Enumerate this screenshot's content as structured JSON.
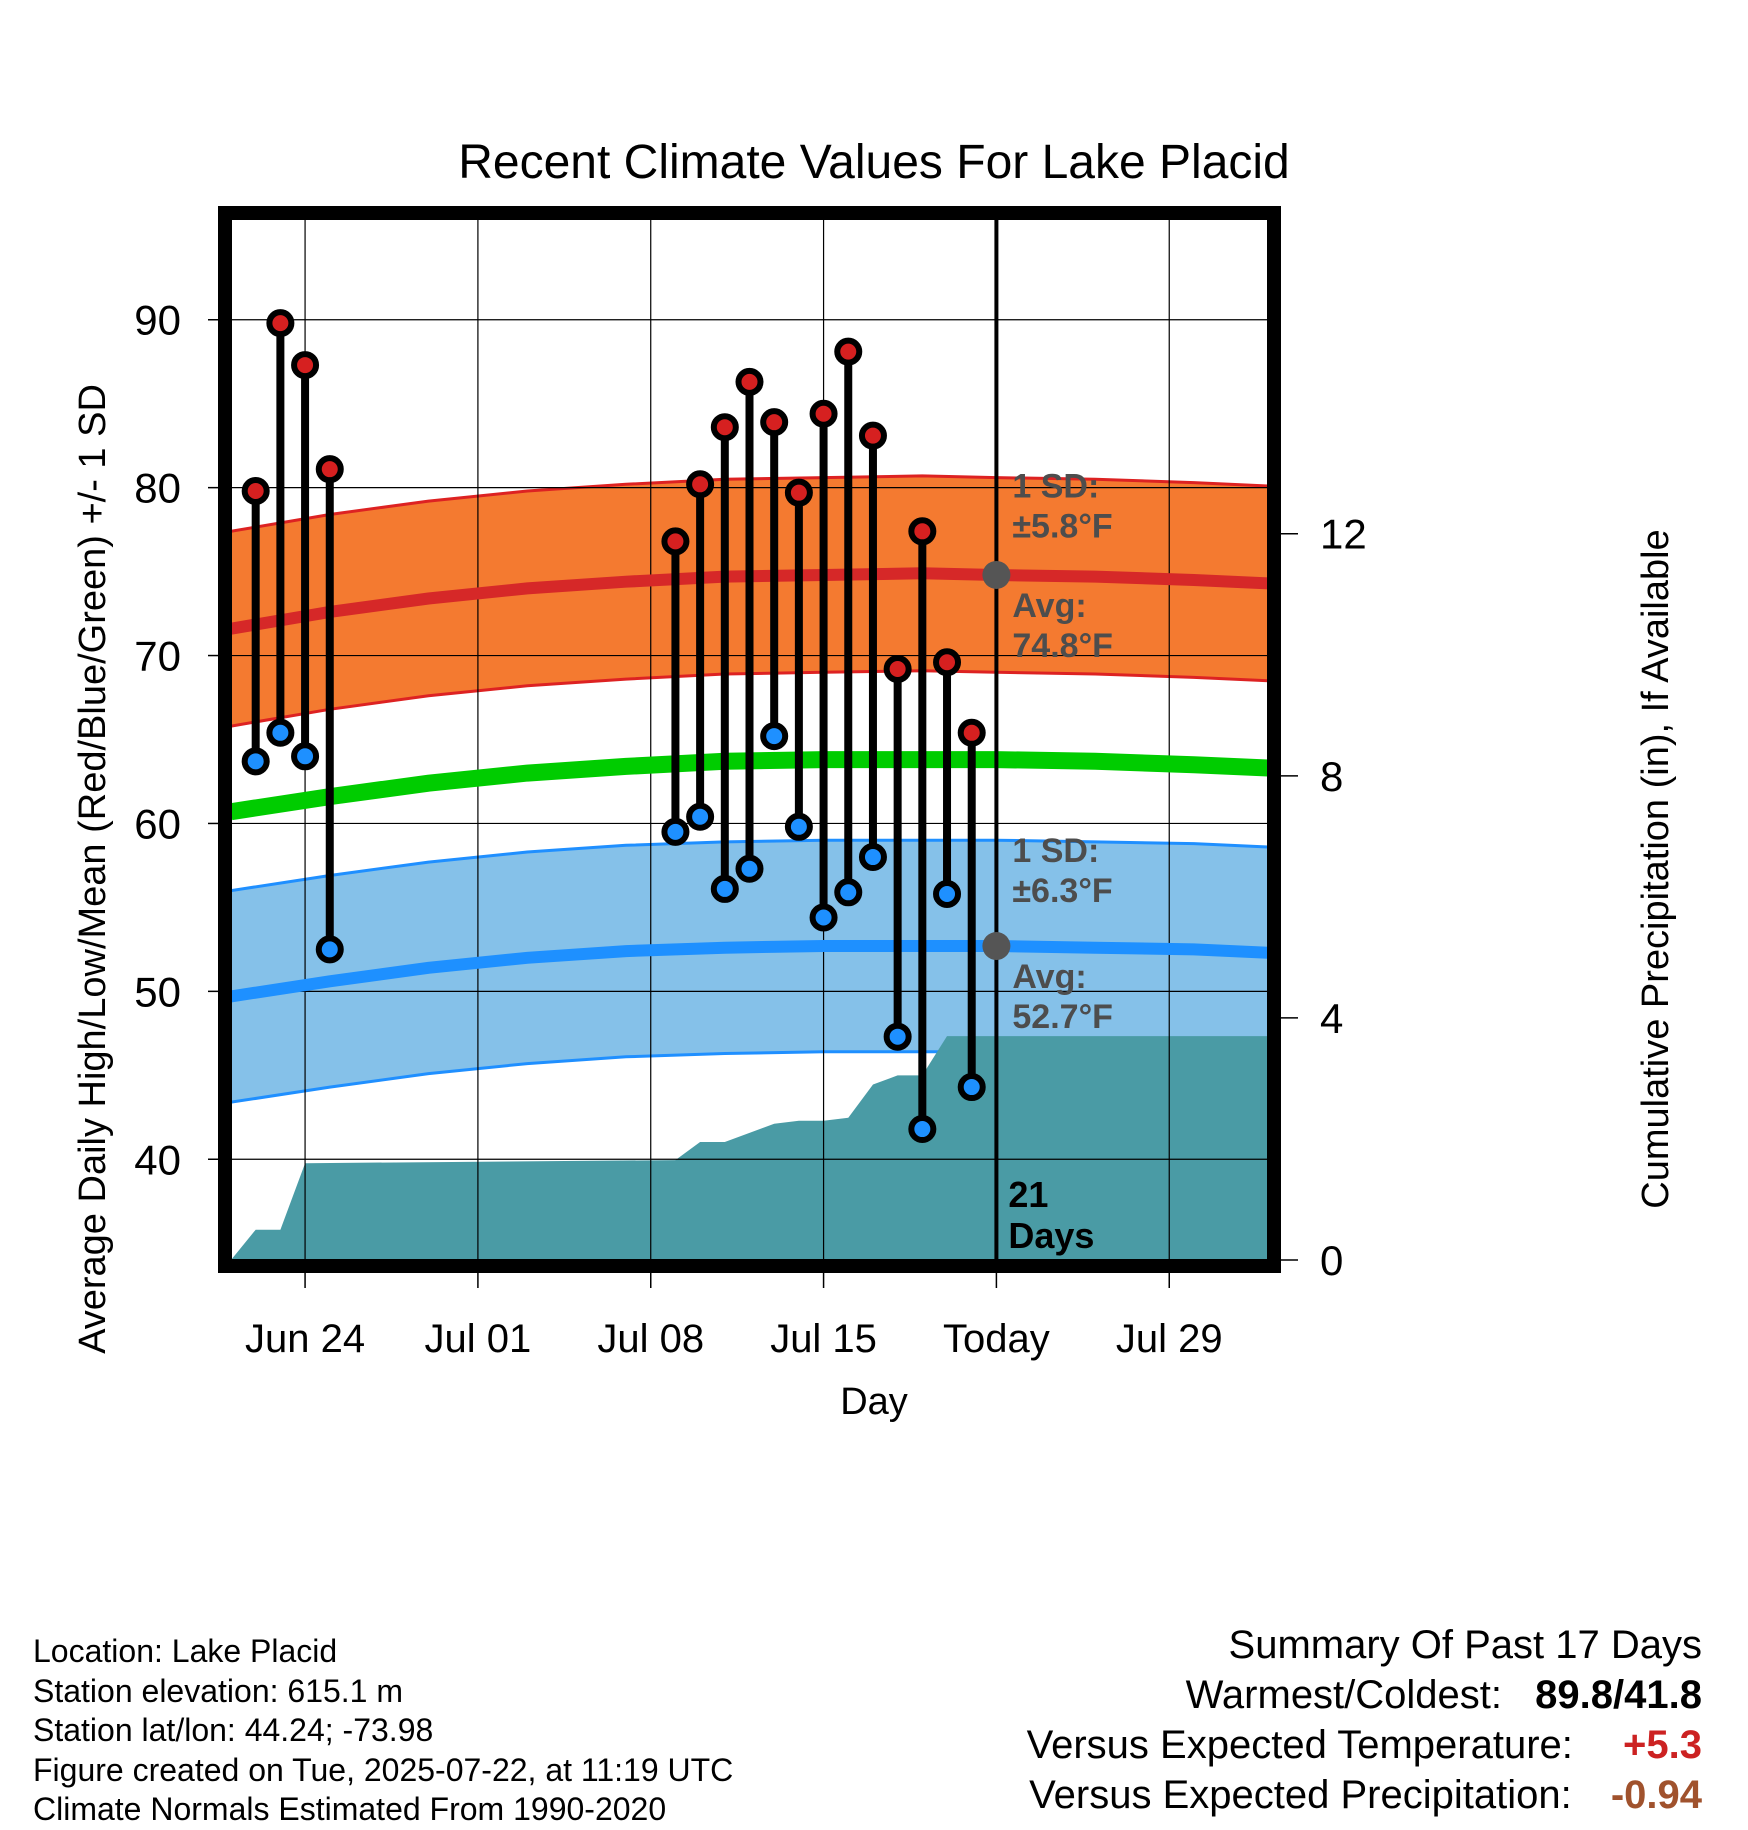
{
  "chart_data": {
    "type": "line",
    "title": "Recent Climate Values For Lake Placid",
    "xlabel": "Day",
    "ylabel": "Average Daily High/Low/Mean (Red/Blue/Green) +/- 1 SD",
    "y2label": "Cumulative Precipitation (in), If Available",
    "xlim": [
      "2025-06-21",
      "2025-08-02"
    ],
    "ylim": [
      34,
      96
    ],
    "y2lim": [
      0,
      17.2
    ],
    "grid": true,
    "today": "2025-07-22",
    "x_ticks": [
      {
        "date": "2025-06-24",
        "label": "Jun 24"
      },
      {
        "date": "2025-07-01",
        "label": "Jul 01"
      },
      {
        "date": "2025-07-08",
        "label": "Jul 08"
      },
      {
        "date": "2025-07-15",
        "label": "Jul 15"
      },
      {
        "date": "2025-07-22",
        "label": "Today"
      },
      {
        "date": "2025-07-29",
        "label": "Jul 29"
      }
    ],
    "y_ticks": [
      40,
      50,
      60,
      70,
      80,
      90
    ],
    "y2_ticks": [
      0,
      4,
      8,
      12
    ],
    "normals": {
      "x": [
        "2025-06-21",
        "2025-06-25",
        "2025-06-29",
        "2025-07-03",
        "2025-07-07",
        "2025-07-11",
        "2025-07-15",
        "2025-07-19",
        "2025-07-22",
        "2025-07-26",
        "2025-07-30",
        "2025-08-02"
      ],
      "high_mean": [
        71.6,
        72.6,
        73.4,
        74.0,
        74.4,
        74.7,
        74.8,
        74.9,
        74.8,
        74.7,
        74.5,
        74.3
      ],
      "low_mean": [
        49.7,
        50.6,
        51.4,
        52.0,
        52.4,
        52.6,
        52.7,
        52.7,
        52.7,
        52.6,
        52.5,
        52.3
      ],
      "mean": [
        60.7,
        61.6,
        62.4,
        63.0,
        63.4,
        63.7,
        63.8,
        63.8,
        63.8,
        63.7,
        63.5,
        63.3
      ],
      "high_sd": 5.8,
      "low_sd": 6.3
    },
    "observations": {
      "dates": [
        "2025-06-22",
        "2025-06-23",
        "2025-06-24",
        "2025-06-25",
        "2025-07-09",
        "2025-07-10",
        "2025-07-11",
        "2025-07-12",
        "2025-07-13",
        "2025-07-14",
        "2025-07-15",
        "2025-07-16",
        "2025-07-17",
        "2025-07-18",
        "2025-07-19",
        "2025-07-20",
        "2025-07-21"
      ],
      "high": [
        79.8,
        89.8,
        87.3,
        81.1,
        76.8,
        80.2,
        83.6,
        86.3,
        83.9,
        79.7,
        84.4,
        88.1,
        83.1,
        69.2,
        77.4,
        69.6,
        65.4
      ],
      "low": [
        63.7,
        65.4,
        64.0,
        52.5,
        59.5,
        60.4,
        56.1,
        57.3,
        65.2,
        59.8,
        54.4,
        55.9,
        58.0,
        47.3,
        41.8,
        55.8,
        44.3
      ]
    },
    "precipitation": {
      "x": [
        "2025-06-21",
        "2025-06-22",
        "2025-06-23",
        "2025-06-24",
        "2025-07-09",
        "2025-07-10",
        "2025-07-11",
        "2025-07-12",
        "2025-07-13",
        "2025-07-14",
        "2025-07-15",
        "2025-07-16",
        "2025-07-17",
        "2025-07-18",
        "2025-07-19",
        "2025-07-20",
        "2025-08-02"
      ],
      "cumulative": [
        0.0,
        0.5,
        0.5,
        1.6,
        1.65,
        1.95,
        1.95,
        2.1,
        2.25,
        2.3,
        2.3,
        2.35,
        2.9,
        3.05,
        3.05,
        3.7,
        3.7
      ]
    },
    "annotations": {
      "high_sd": [
        "1 SD:",
        "±5.8°F"
      ],
      "high_avg": [
        "Avg:",
        "74.8°F"
      ],
      "low_sd": [
        "1 SD:",
        "±6.3°F"
      ],
      "low_avg": [
        "Avg:",
        "52.7°F"
      ],
      "window": [
        "21",
        "Days"
      ]
    },
    "colors": {
      "high_band": "#f47a30",
      "high_band_edge": "#dd2222",
      "high_line": "#d62828",
      "low_band": "#85c1e9",
      "low_band_edge": "#1f8fff",
      "low_line": "#1e90ff",
      "mean_line": "#00cc00",
      "precip": "#4a9ba5",
      "high_dot": "#d62020",
      "low_dot": "#1e90ff",
      "today_dot": "#555555"
    }
  },
  "info": [
    "Location: Lake Placid",
    "Station elevation: 615.1 m",
    "Station lat/lon: 44.24; -73.98",
    "Figure created on Tue, 2025-07-22, at 11:19 UTC",
    "Climate Normals Estimated From 1990-2020"
  ],
  "summary": {
    "heading": "Summary Of Past 17 Days",
    "warmest_label": "Warmest/Coldest:",
    "warmest_high": "89.8",
    "warmest_sep": "/",
    "warmest_low": "41.8",
    "temp_label": "Versus Expected Temperature:",
    "temp_value": "+5.3",
    "temp_color": "#cc2222",
    "precip_label": "Versus Expected Precipitation:",
    "precip_value": "-0.94",
    "precip_color": "#a0522d"
  }
}
